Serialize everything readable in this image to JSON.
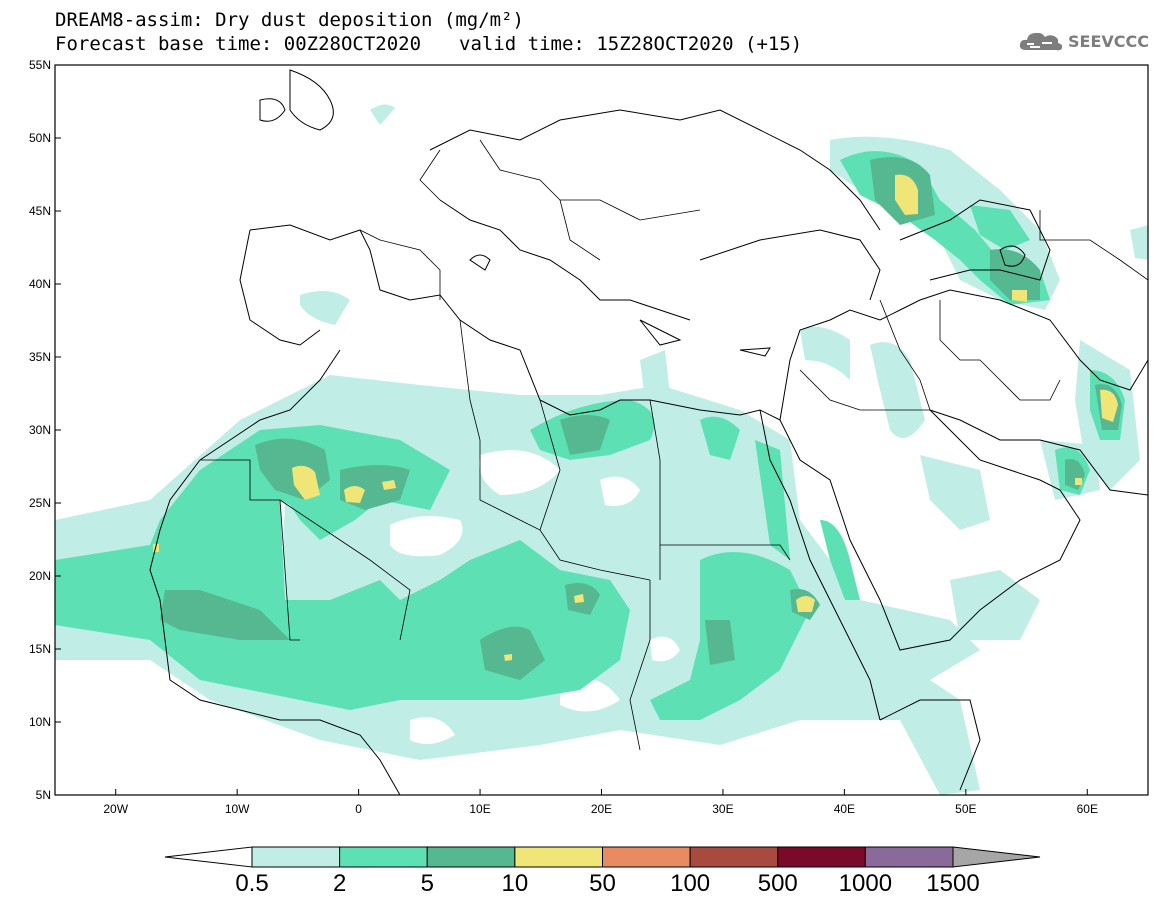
{
  "header": {
    "title_line1": "DREAM8-assim: Dry dust deposition (mg/m²)",
    "forecast_base": "Forecast base time: 00Z28OCT2020",
    "valid_time": "valid time: 15Z28OCT2020 (+15)"
  },
  "logo": {
    "text": "SEEVCCC",
    "icon": "cloud-logo-icon"
  },
  "map": {
    "lon_range": [
      -25,
      65
    ],
    "lat_range": [
      5,
      55
    ],
    "lat_ticks": [
      {
        "value": 55,
        "label": "55N"
      },
      {
        "value": 50,
        "label": "50N"
      },
      {
        "value": 45,
        "label": "45N"
      },
      {
        "value": 40,
        "label": "40N"
      },
      {
        "value": 35,
        "label": "35N"
      },
      {
        "value": 30,
        "label": "30N"
      },
      {
        "value": 25,
        "label": "25N"
      },
      {
        "value": 20,
        "label": "20N"
      },
      {
        "value": 15,
        "label": "15N"
      },
      {
        "value": 10,
        "label": "10N"
      },
      {
        "value": 5,
        "label": "5N"
      }
    ],
    "lon_ticks": [
      {
        "value": -20,
        "label": "20W"
      },
      {
        "value": -10,
        "label": "10W"
      },
      {
        "value": 0,
        "label": "0"
      },
      {
        "value": 10,
        "label": "10E"
      },
      {
        "value": 20,
        "label": "20E"
      },
      {
        "value": 30,
        "label": "30E"
      },
      {
        "value": 40,
        "label": "40E"
      },
      {
        "value": 50,
        "label": "50E"
      },
      {
        "value": 60,
        "label": "60E"
      }
    ]
  },
  "colorbar": {
    "levels": [
      "0.5",
      "2",
      "5",
      "10",
      "50",
      "100",
      "500",
      "1000",
      "1500"
    ],
    "colors": [
      "#ffffff",
      "#c0eee6",
      "#5ce0b4",
      "#55b890",
      "#f0e678",
      "#e88a62",
      "#a84a3e",
      "#7a0a2a",
      "#8a6a9a",
      "#a6a6a6"
    ]
  }
}
